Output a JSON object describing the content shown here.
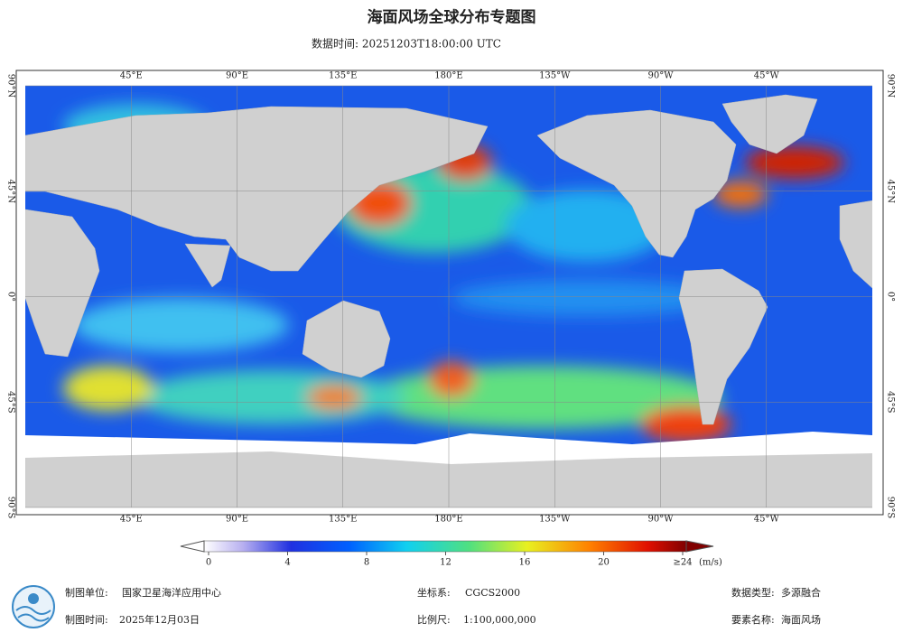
{
  "header": {
    "title": "海面风场全球分布专题图",
    "subtitle": "数据时间: 20251203T18:00:00 UTC"
  },
  "map": {
    "lon_ticks": [
      {
        "value": 45,
        "label": "45°E"
      },
      {
        "value": 90,
        "label": "90°E"
      },
      {
        "value": 135,
        "label": "135°E"
      },
      {
        "value": 180,
        "label": "180°E"
      },
      {
        "value": 225,
        "label": "135°W"
      },
      {
        "value": 270,
        "label": "90°W"
      },
      {
        "value": 315,
        "label": "45°W"
      }
    ],
    "lat_ticks": [
      {
        "value": 90,
        "label": "90°N"
      },
      {
        "value": 45,
        "label": "45°N"
      },
      {
        "value": 0,
        "label": "0°"
      },
      {
        "value": -45,
        "label": "45°S"
      },
      {
        "value": -90,
        "label": "90°S"
      }
    ]
  },
  "colorbar": {
    "lim": [
      0,
      24
    ],
    "ticks": [
      0,
      4,
      8,
      12,
      16,
      20,
      {
        "value": 24,
        "label": "≥24"
      }
    ],
    "unit": "(m/s)"
  },
  "footer": {
    "producer": {
      "label": "制图单位:",
      "value": "国家卫星海洋应用中心"
    },
    "date": {
      "label": "制图时间:",
      "value": "2025年12月03日"
    },
    "crs": {
      "label": "坐标系:",
      "value": "CGCS2000"
    },
    "scale": {
      "label": "比例尺:",
      "value": "1:100,000,000"
    },
    "data_type": {
      "label": "数据类型:",
      "value": "多源融合"
    },
    "element": {
      "label": "要素名称:",
      "value": "海面风场"
    }
  }
}
